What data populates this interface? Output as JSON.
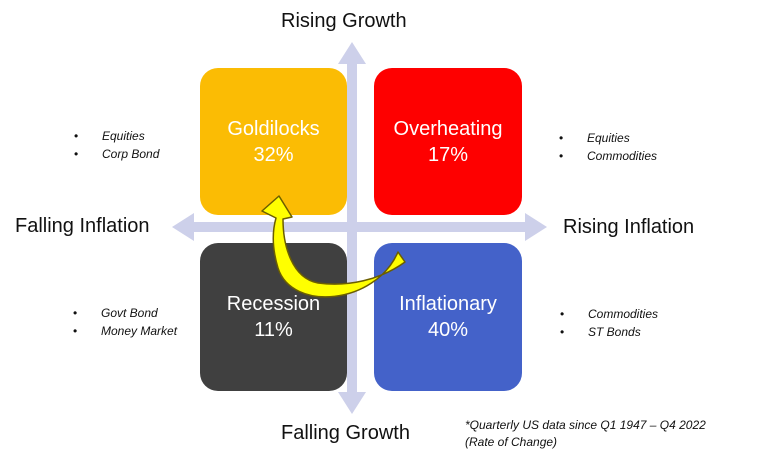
{
  "axes": {
    "top": "Rising Growth",
    "bottom": "Falling Growth",
    "left": "Falling Inflation",
    "right": "Rising Inflation"
  },
  "quadrants": {
    "goldilocks": {
      "name": "Goldilocks",
      "pct": "32%",
      "color": "#fbbc04"
    },
    "overheating": {
      "name": "Overheating",
      "pct": "17%",
      "color": "#fe0000"
    },
    "recession": {
      "name": "Recession",
      "pct": "11%",
      "color": "#404040"
    },
    "inflationary": {
      "name": "Inflationary",
      "pct": "40%",
      "color": "#4462c9"
    }
  },
  "assets": {
    "goldilocks": [
      "Equities",
      "Corp Bond"
    ],
    "overheating": [
      "Equities",
      "Commodities"
    ],
    "recession": [
      "Govt Bond",
      "Money Market"
    ],
    "inflationary": [
      "Commodities",
      "ST Bonds"
    ]
  },
  "footnote": {
    "line1": "*Quarterly US data since Q1 1947 – Q4 2022",
    "line2": "(Rate of Change)"
  },
  "colors": {
    "axis": "#cdd0ea",
    "arrow_fill": "#ffff00",
    "arrow_stroke": "#6b5e00"
  }
}
